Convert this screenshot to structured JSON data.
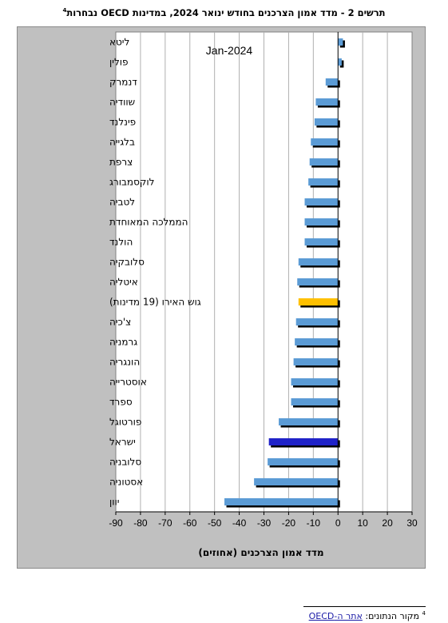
{
  "title": {
    "text": "תרשים 2 - מדד אמון הצרכנים בחודש ינואר 2024, במדינות OECD נבחרות",
    "footnote_ref": "4"
  },
  "footnote": {
    "number": "4",
    "label": "מקור הנתונים:",
    "link_text": "אתר ה-OECD"
  },
  "colors": {
    "plot_bg": "#ffffff",
    "frame_bg": "#c0c0c0",
    "bar": "#5b9bd5",
    "israel": "#1f22c8",
    "euro_area": "#ffc000",
    "shadow": "#000000",
    "grid": "#b0b0b0"
  },
  "chart_data": {
    "type": "bar",
    "orientation": "horizontal",
    "annotation": "Jan-2024",
    "xlabel": "מדד אמון הצרכנים (אחוזים)",
    "ylabel": "",
    "xlim": [
      -90,
      30
    ],
    "xticks": [
      -90,
      -80,
      -70,
      -60,
      -50,
      -40,
      -30,
      -20,
      -10,
      0,
      10,
      20,
      30
    ],
    "grid": "vertical",
    "categories": [
      "ליטא",
      "פולין",
      "דנמרק",
      "שוודיה",
      "פינלנד",
      "בלגייה",
      "צרפת",
      "לוקסמבורג",
      "לטביה",
      "הממלכה המאוחדת",
      "הולנד",
      "סלובקיה",
      "איטליה",
      "גוש האירו (19 מדינות)",
      "צ'כיה",
      "גרמניה",
      "הונגריה",
      "אוסטרייה",
      "ספרד",
      "פורטוגל",
      "ישראל",
      "סלובניה",
      "אסטוניה",
      "יוון"
    ],
    "values": [
      2,
      1.5,
      -5,
      -9,
      -9.5,
      -11,
      -11.5,
      -12,
      -13.5,
      -13.5,
      -13.5,
      -16,
      -16.5,
      -16,
      -17,
      -17.5,
      -18,
      -19,
      -19,
      -24,
      -28,
      -28.5,
      -34,
      -46
    ],
    "highlights": {
      "ישראל": "israel",
      "גוש האירו (19 מדינות)": "euro_area"
    }
  }
}
